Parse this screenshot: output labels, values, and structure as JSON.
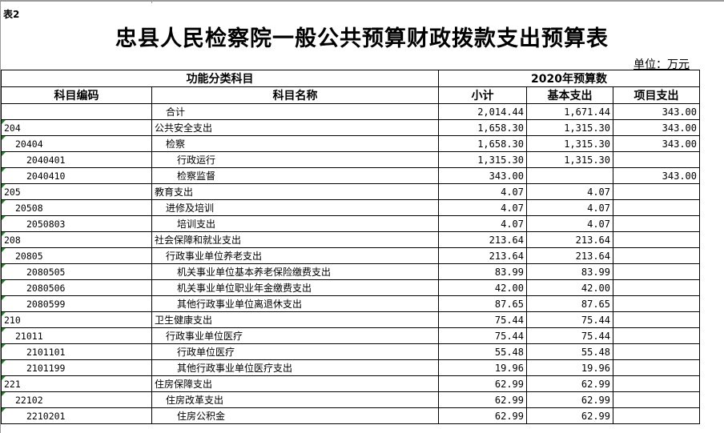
{
  "label": "表2",
  "title": "忠县人民检察院一般公共预算财政拨款支出预算表",
  "unit": "单位：万元",
  "headers": {
    "group1": "功能分类科目",
    "group2": "2020年预算数",
    "code": "科目编码",
    "name": "科目名称",
    "subtotal": "小计",
    "basic": "基本支出",
    "project": "项目支出"
  },
  "rows": [
    {
      "code": "",
      "name": "合计",
      "level": 1,
      "subtotal": "2,014.44",
      "basic": "1,671.44",
      "project": "343.00"
    },
    {
      "code": "204",
      "name": "公共安全支出",
      "level": 0,
      "subtotal": "1,658.30",
      "basic": "1,315.30",
      "project": "343.00"
    },
    {
      "code": "20404",
      "name": "检察",
      "level": 1,
      "subtotal": "1,658.30",
      "basic": "1,315.30",
      "project": "343.00"
    },
    {
      "code": "2040401",
      "name": "行政运行",
      "level": 2,
      "subtotal": "1,315.30",
      "basic": "1,315.30",
      "project": ""
    },
    {
      "code": "2040410",
      "name": "检察监督",
      "level": 2,
      "subtotal": "343.00",
      "basic": "",
      "project": "343.00"
    },
    {
      "code": "205",
      "name": "教育支出",
      "level": 0,
      "subtotal": "4.07",
      "basic": "4.07",
      "project": ""
    },
    {
      "code": "20508",
      "name": "进修及培训",
      "level": 1,
      "subtotal": "4.07",
      "basic": "4.07",
      "project": ""
    },
    {
      "code": "2050803",
      "name": "培训支出",
      "level": 2,
      "subtotal": "4.07",
      "basic": "4.07",
      "project": ""
    },
    {
      "code": "208",
      "name": "社会保障和就业支出",
      "level": 0,
      "subtotal": "213.64",
      "basic": "213.64",
      "project": ""
    },
    {
      "code": "20805",
      "name": "行政事业单位养老支出",
      "level": 1,
      "subtotal": "213.64",
      "basic": "213.64",
      "project": ""
    },
    {
      "code": "2080505",
      "name": "机关事业单位基本养老保险缴费支出",
      "level": 2,
      "subtotal": "83.99",
      "basic": "83.99",
      "project": ""
    },
    {
      "code": "2080506",
      "name": "机关事业单位职业年金缴费支出",
      "level": 2,
      "subtotal": "42.00",
      "basic": "42.00",
      "project": ""
    },
    {
      "code": "2080599",
      "name": "其他行政事业单位离退休支出",
      "level": 2,
      "subtotal": "87.65",
      "basic": "87.65",
      "project": ""
    },
    {
      "code": "210",
      "name": "卫生健康支出",
      "level": 0,
      "subtotal": "75.44",
      "basic": "75.44",
      "project": ""
    },
    {
      "code": "21011",
      "name": "行政事业单位医疗",
      "level": 1,
      "subtotal": "75.44",
      "basic": "75.44",
      "project": ""
    },
    {
      "code": "2101101",
      "name": "行政单位医疗",
      "level": 2,
      "subtotal": "55.48",
      "basic": "55.48",
      "project": ""
    },
    {
      "code": "2101199",
      "name": "其他行政事业单位医疗支出",
      "level": 2,
      "subtotal": "19.96",
      "basic": "19.96",
      "project": ""
    },
    {
      "code": "221",
      "name": "住房保障支出",
      "level": 0,
      "subtotal": "62.99",
      "basic": "62.99",
      "project": ""
    },
    {
      "code": "22102",
      "name": "住房改革支出",
      "level": 1,
      "subtotal": "62.99",
      "basic": "62.99",
      "project": ""
    },
    {
      "code": "2210201",
      "name": "住房公积金",
      "level": 2,
      "subtotal": "62.99",
      "basic": "62.99",
      "project": ""
    }
  ]
}
